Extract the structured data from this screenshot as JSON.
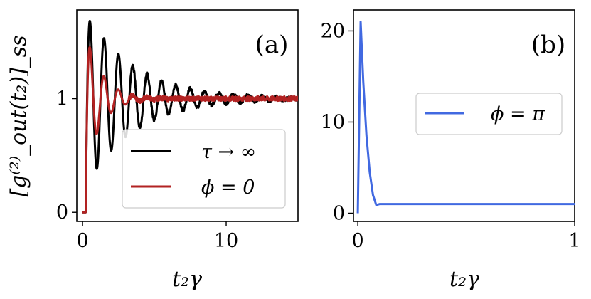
{
  "chart_data": [
    {
      "panel": "(a)",
      "type": "line",
      "xlabel": "t₂γ",
      "ylabel": "[g⁽²⁾_out(t₂)]_ss",
      "xlim": [
        -0.4,
        15
      ],
      "ylim": [
        -0.08,
        1.78
      ],
      "xticks": [
        0,
        10
      ],
      "yticks": [
        0,
        1
      ],
      "legend_position": "lower-right",
      "grid": false,
      "series": [
        {
          "name": "τ → ∞",
          "color": "#000000",
          "model": {
            "amplitude": 0.78,
            "decay": 0.3,
            "period": 1.0,
            "start_delay": 0.22,
            "noise": 0.015
          }
        },
        {
          "name": "ϕ = 0",
          "color": "#b22222",
          "model": {
            "amplitude": 0.62,
            "decay": 0.9,
            "period": 1.0,
            "start_delay": 0.22,
            "noise": 0.02
          }
        }
      ]
    },
    {
      "panel": "(b)",
      "type": "line",
      "xlabel": "t₂γ",
      "ylabel": "",
      "xlim": [
        -0.02,
        1.0
      ],
      "ylim": [
        -0.9,
        22.3
      ],
      "xticks": [
        0,
        1
      ],
      "yticks": [
        0,
        10,
        20
      ],
      "legend_position": "center-right",
      "grid": false,
      "series": [
        {
          "name": "ϕ = π",
          "color": "#4169e1",
          "x": [
            0,
            0.013,
            0.025,
            0.04,
            0.055,
            0.07,
            0.085,
            0.1,
            0.12,
            0.15,
            0.2,
            0.3,
            0.4,
            0.6,
            0.8,
            1.0
          ],
          "y": [
            0,
            21.0,
            14.5,
            8.5,
            4.5,
            2.0,
            0.9,
            1.0,
            1.0,
            1.0,
            1.0,
            1.0,
            1.0,
            1.0,
            1.0,
            1.0
          ]
        }
      ]
    }
  ]
}
